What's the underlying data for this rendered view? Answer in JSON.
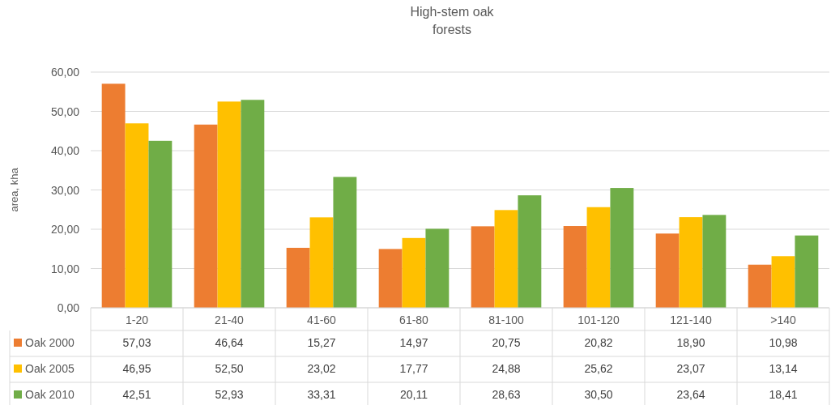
{
  "chart_data": {
    "type": "bar",
    "title": "High-stem oak\nforests",
    "ylabel": "area, kha",
    "categories": [
      "1-20",
      "21-40",
      "41-60",
      "61-80",
      "81-100",
      "101-120",
      "121-140",
      ">140"
    ],
    "series": [
      {
        "name": "Oak 2000",
        "color": "#ed7d31",
        "values": [
          57.03,
          46.64,
          15.27,
          14.97,
          20.75,
          20.82,
          18.9,
          10.98
        ],
        "value_labels": [
          "57,03",
          "46,64",
          "15,27",
          "14,97",
          "20,75",
          "20,82",
          "18,90",
          "10,98"
        ]
      },
      {
        "name": "Oak 2005",
        "color": "#ffc000",
        "values": [
          46.95,
          52.5,
          23.02,
          17.77,
          24.88,
          25.62,
          23.07,
          13.14
        ],
        "value_labels": [
          "46,95",
          "52,50",
          "23,02",
          "17,77",
          "24,88",
          "25,62",
          "23,07",
          "13,14"
        ]
      },
      {
        "name": "Oak 2010",
        "color": "#70ad47",
        "values": [
          42.51,
          52.93,
          33.31,
          20.11,
          28.63,
          30.5,
          23.64,
          18.41
        ],
        "value_labels": [
          "42,51",
          "52,93",
          "33,31",
          "20,11",
          "28,63",
          "30,50",
          "23,64",
          "18,41"
        ]
      }
    ],
    "ylim": [
      0,
      60
    ],
    "yticks": [
      {
        "value": 0,
        "label": "0,00"
      },
      {
        "value": 10,
        "label": "10,00"
      },
      {
        "value": 20,
        "label": "20,00"
      },
      {
        "value": 30,
        "label": "30,00"
      },
      {
        "value": 40,
        "label": "40,00"
      },
      {
        "value": 50,
        "label": "50,00"
      },
      {
        "value": 60,
        "label": "60,00"
      }
    ],
    "grid": "y",
    "legend": "bottom"
  }
}
